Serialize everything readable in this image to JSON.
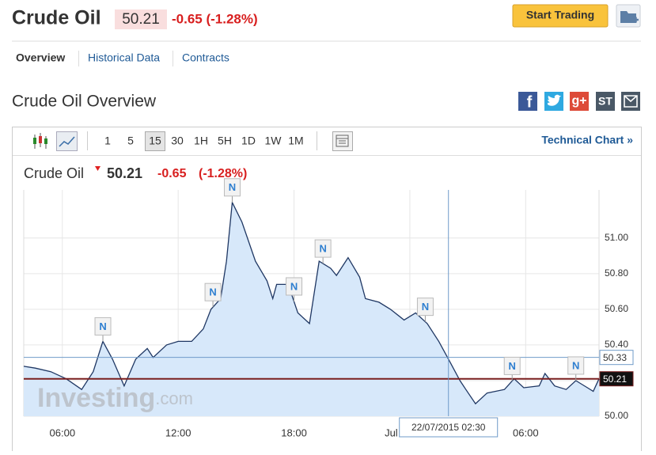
{
  "header": {
    "title": "Crude Oil",
    "price": "50.21",
    "change": "-0.65 (-1.28%)",
    "button": "Start Trading"
  },
  "tabs": [
    "Overview",
    "Historical Data",
    "Contracts"
  ],
  "section_title": "Crude Oil Overview",
  "social": [
    "f",
    "g+",
    "ST"
  ],
  "toolbar": {
    "timeframes": [
      "1",
      "5",
      "15",
      "30",
      "1H",
      "5H",
      "1D",
      "1W",
      "1M"
    ],
    "active": "15",
    "link": "Technical Chart »"
  },
  "chart_data": {
    "type": "line",
    "legend": {
      "price": "50.21",
      "change": "-0.65",
      "percent": "(-1.28%)"
    },
    "watermark": {
      "brand": "Investing",
      "suffix": ".com"
    },
    "x": [
      -2.0,
      -1.4,
      -0.6,
      0.2,
      1.0,
      1.6,
      2.1,
      2.6,
      3.2,
      3.8,
      4.4,
      4.7,
      5.4,
      6.0,
      6.7,
      7.3,
      7.7,
      8.2,
      8.5,
      8.8,
      9.3,
      10.0,
      10.6,
      10.9,
      11.1,
      11.7,
      12.2,
      12.8,
      13.3,
      13.9,
      14.2,
      14.8,
      15.4,
      15.7,
      16.4,
      17.0,
      17.7,
      18.3,
      18.9,
      19.5,
      20.1,
      20.6,
      20.9,
      21.4,
      22.0,
      22.9,
      23.4,
      23.9,
      24.7,
      25.0,
      25.5,
      26.1,
      26.6,
      27.2,
      27.5,
      27.8
    ],
    "series": [
      {
        "name": "Crude Oil",
        "color": "#1f3763",
        "fill": "#d7e8fa",
        "values": [
          50.28,
          50.27,
          50.25,
          50.21,
          50.15,
          50.25,
          50.42,
          50.32,
          50.17,
          50.32,
          50.38,
          50.33,
          50.4,
          50.42,
          50.42,
          50.49,
          50.6,
          50.66,
          50.87,
          51.2,
          51.09,
          50.87,
          50.76,
          50.66,
          50.74,
          50.74,
          50.58,
          50.52,
          50.87,
          50.83,
          50.79,
          50.89,
          50.78,
          50.66,
          50.64,
          50.6,
          50.54,
          50.58,
          50.52,
          50.42,
          50.3,
          50.2,
          50.15,
          50.07,
          50.13,
          50.15,
          50.21,
          50.16,
          50.17,
          50.24,
          50.17,
          50.15,
          50.2,
          50.16,
          50.14,
          50.21
        ]
      }
    ],
    "xlim": [
      -2.0,
      27.8
    ],
    "xticks": [
      {
        "value": 0,
        "label": "06:00"
      },
      {
        "value": 6,
        "label": "12:00"
      },
      {
        "value": 12,
        "label": "18:00"
      },
      {
        "value": 18,
        "label": "Jul"
      },
      {
        "value": 24,
        "label": "06:00"
      }
    ],
    "ylim": [
      50.0,
      51.27
    ],
    "yticks": [
      {
        "value": 50.0,
        "label": "50.00"
      },
      {
        "value": 50.2,
        "label": "50.20"
      },
      {
        "value": 50.4,
        "label": "50.40"
      },
      {
        "value": 50.6,
        "label": "50.60"
      },
      {
        "value": 50.8,
        "label": "50.80"
      },
      {
        "value": 51.0,
        "label": "51.00"
      }
    ],
    "grid": true,
    "price_lines": [
      {
        "value": 50.33,
        "color": "#6f9bc9"
      },
      {
        "value": 50.21,
        "color": "#7a1f1f"
      }
    ],
    "crosshair": {
      "x": 20.0,
      "label": "22/07/2015 02:30"
    },
    "annotations": [
      {
        "x": 2.1,
        "label": "N"
      },
      {
        "x": 7.8,
        "label": "N"
      },
      {
        "x": 8.8,
        "label": "N"
      },
      {
        "x": 12.0,
        "label": "N"
      },
      {
        "x": 13.5,
        "label": "N"
      },
      {
        "x": 18.8,
        "label": "N"
      },
      {
        "x": 23.3,
        "label": "N"
      },
      {
        "x": 26.6,
        "label": "N"
      }
    ]
  }
}
